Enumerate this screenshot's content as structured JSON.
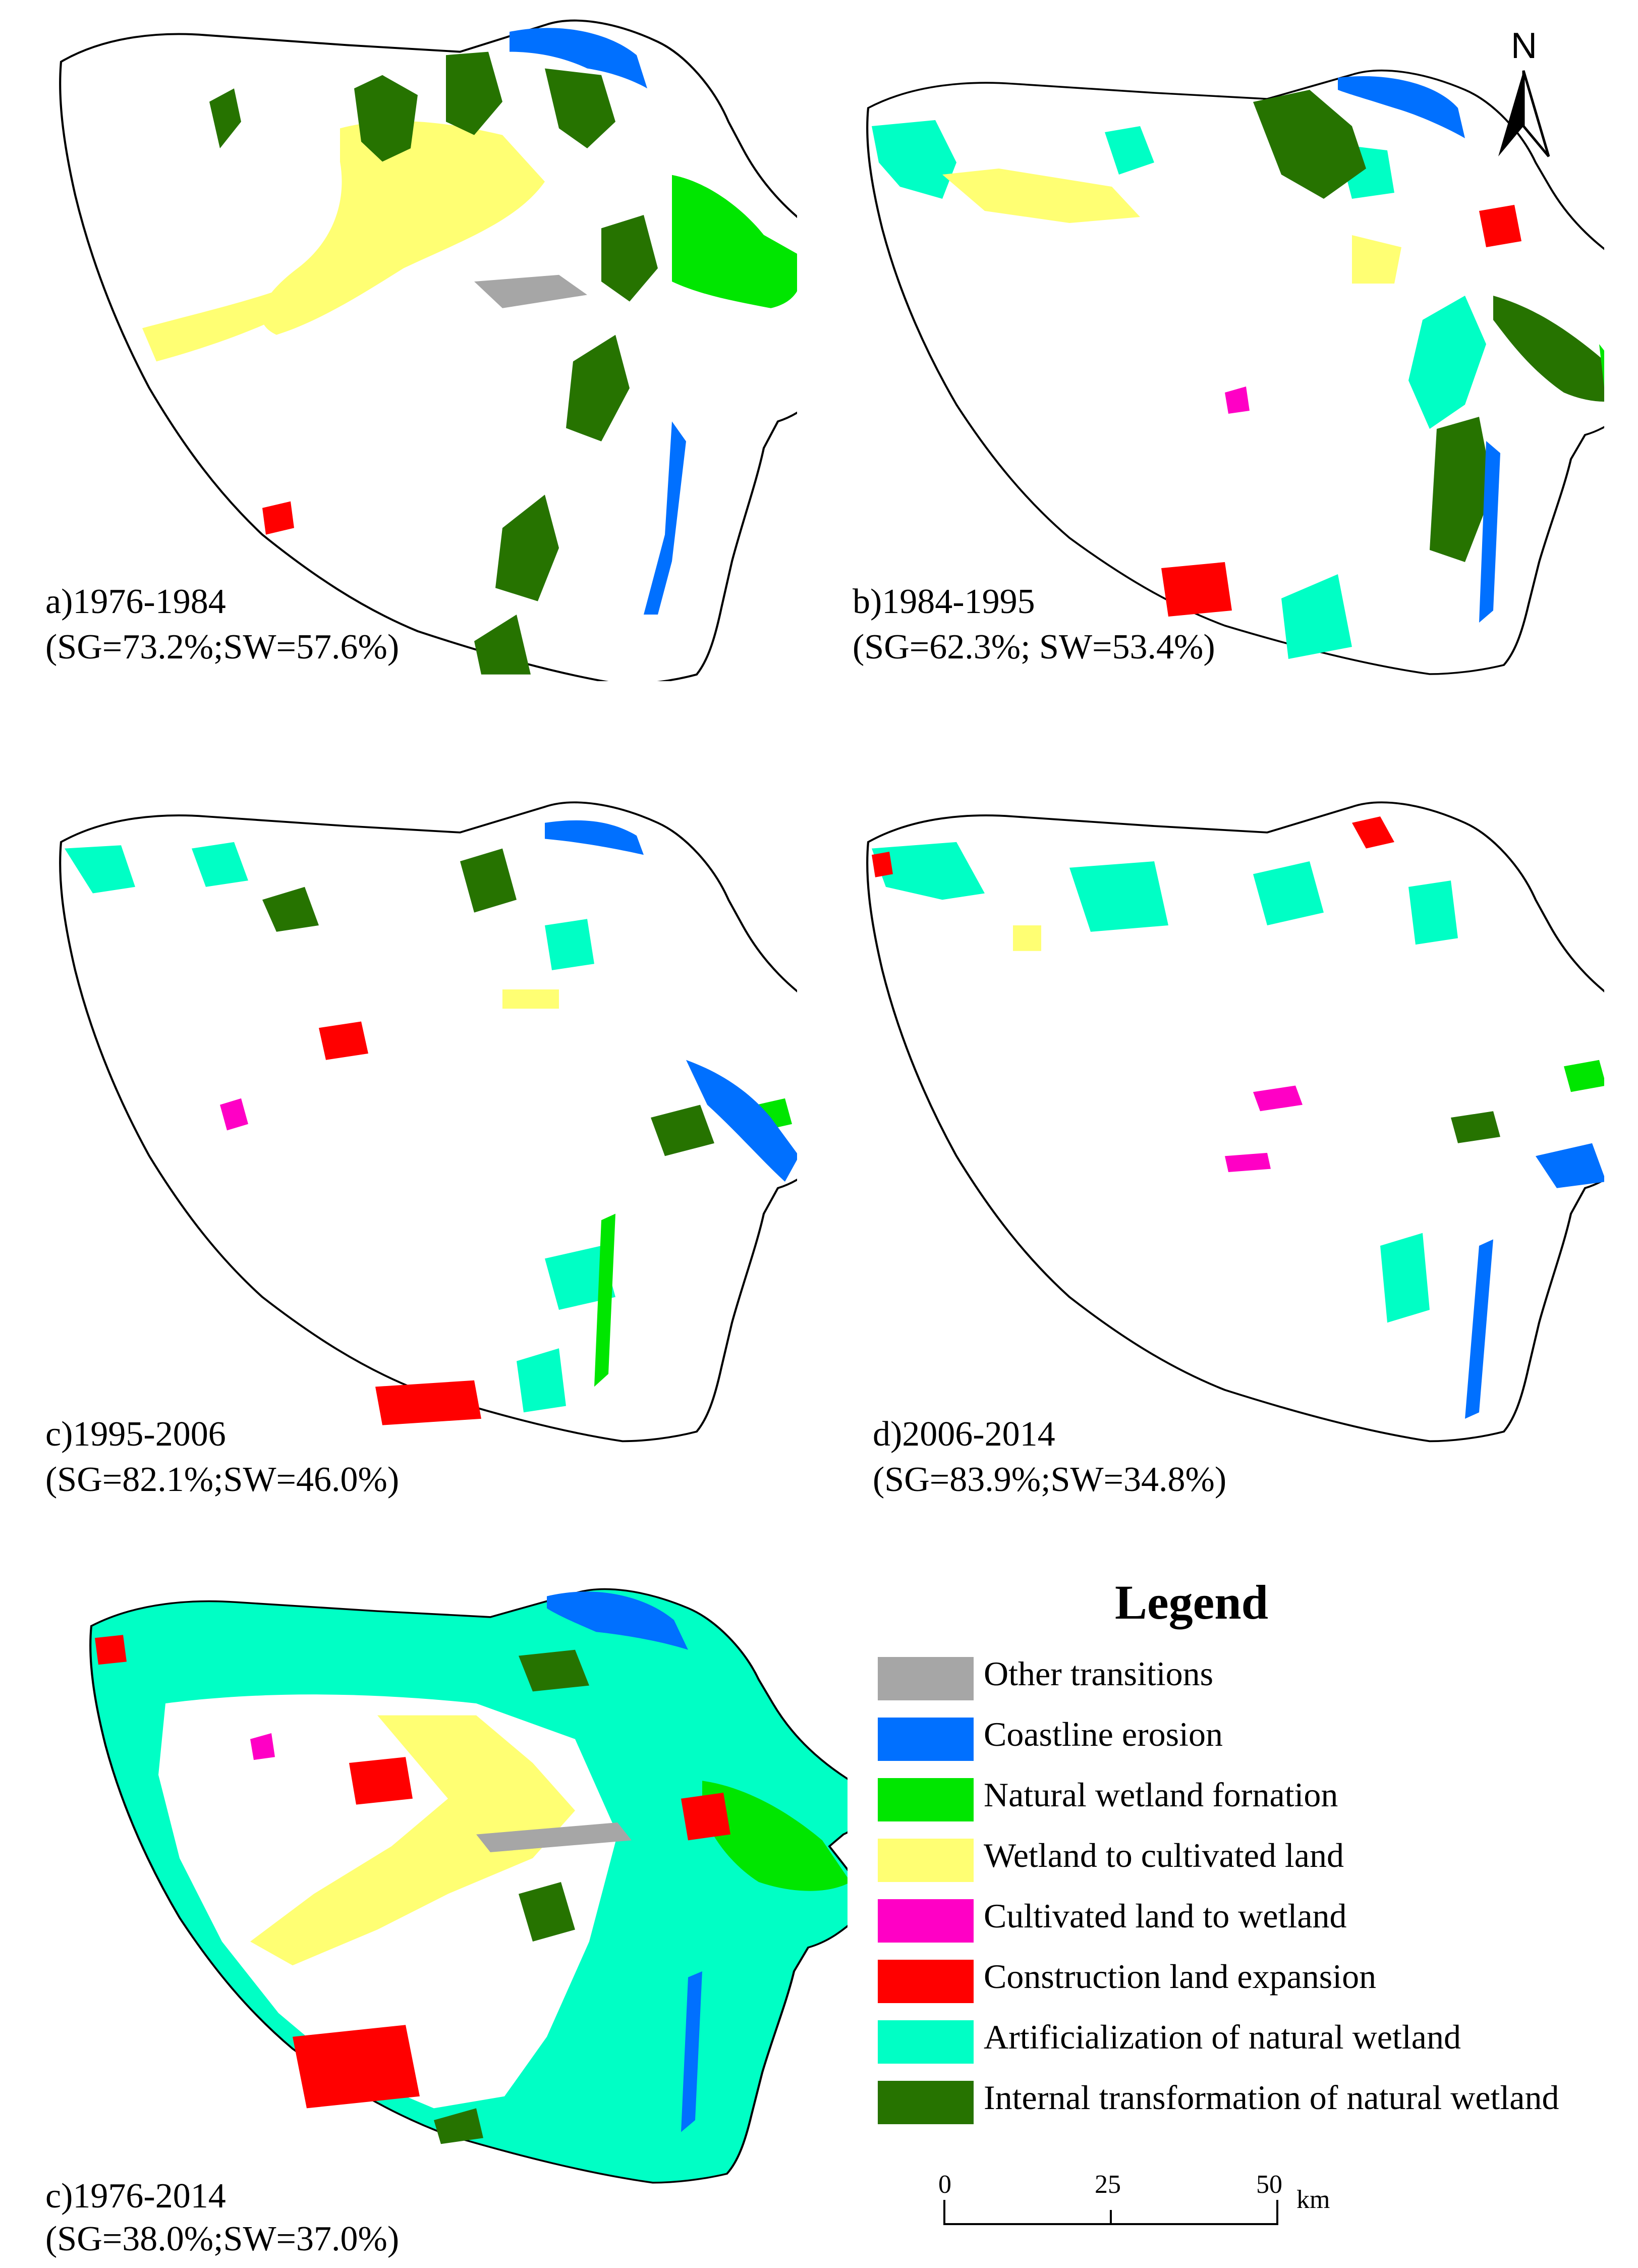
{
  "panels": [
    {
      "id": "a",
      "label": "a)1976-1984",
      "stats": "(SG=73.2%;SW=57.6%)"
    },
    {
      "id": "b",
      "label": "b)1984-1995",
      "stats": "(SG=62.3%; SW=53.4%)"
    },
    {
      "id": "c",
      "label": "c)1995-2006",
      "stats": "(SG=82.1%;SW=46.0%)"
    },
    {
      "id": "d",
      "label": "d)2006-2014",
      "stats": "(SG=83.9%;SW=34.8%)"
    },
    {
      "id": "e",
      "label": "c)1976-2014",
      "stats": "(SG=38.0%;SW=37.0%)"
    }
  ],
  "legend": {
    "title": "Legend",
    "items": [
      {
        "label": "Other transitions",
        "color": "#a6a6a6"
      },
      {
        "label": "Coastline erosion",
        "color": "#0070ff"
      },
      {
        "label": "Natural wetland fornation",
        "color": "#00e600"
      },
      {
        "label": "Wetland to cultivated land",
        "color": "#ffff73"
      },
      {
        "label": "Cultivated land to wetland",
        "color": "#ff00c5"
      },
      {
        "label": "Construction land expansion",
        "color": "#ff0000"
      },
      {
        "label": "Artificialization of natural wetland",
        "color": "#00ffc5"
      },
      {
        "label": "Internal transformation of natural wetland",
        "color": "#267300"
      }
    ]
  },
  "north_arrow": {
    "label": "N"
  },
  "scale_bar": {
    "ticks": [
      "0",
      "25",
      "50"
    ],
    "unit": "km"
  }
}
